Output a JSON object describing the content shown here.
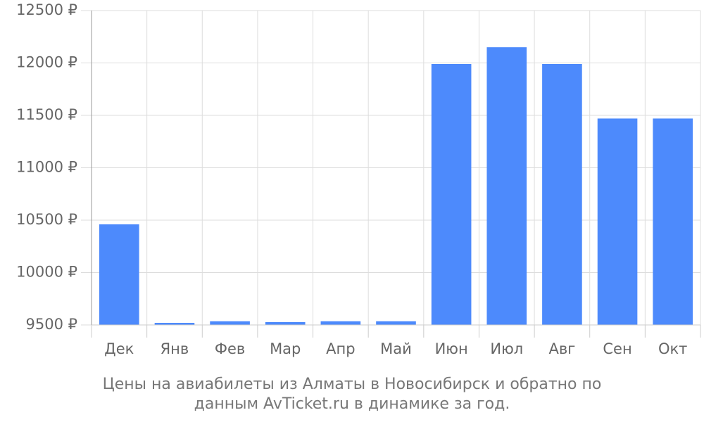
{
  "chart_data": {
    "type": "bar",
    "title": "Цены на авиабилеты из Алматы в Новосибирск и обратно по данным AvTicket.ru в динамике за год.",
    "categories": [
      "Дек",
      "Янв",
      "Фев",
      "Мар",
      "Апр",
      "Май",
      "Июн",
      "Июл",
      "Авг",
      "Сен",
      "Окт"
    ],
    "values": [
      10460,
      9520,
      9535,
      9527,
      9535,
      9535,
      11990,
      12150,
      11990,
      11470,
      11470
    ],
    "color": "#4d8afc",
    "ylim": [
      9500,
      12500
    ],
    "yticks": [
      {
        "value": 9500,
        "label": "9500 ₽"
      },
      {
        "value": 10000,
        "label": "10000 ₽"
      },
      {
        "value": 10500,
        "label": "10500 ₽"
      },
      {
        "value": 11000,
        "label": "11000 ₽"
      },
      {
        "value": 11500,
        "label": "11500 ₽"
      },
      {
        "value": 12000,
        "label": "12000 ₽"
      },
      {
        "value": 12500,
        "label": "12500 ₽"
      }
    ],
    "grid": true
  }
}
